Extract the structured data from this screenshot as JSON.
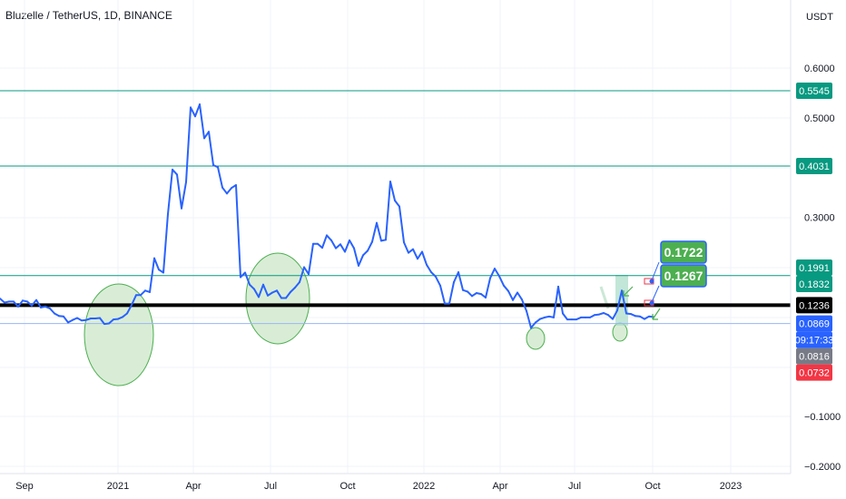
{
  "header": {
    "title": "Bluzelle / TetherUS, 1D, BINANCE"
  },
  "chart_data": {
    "type": "line",
    "title": "Bluzelle / TetherUS, 1D, BINANCE",
    "ylabel": "USDT",
    "ylim": [
      -0.2,
      0.63
    ],
    "y_ticks": [
      "0.6000",
      "0.5000",
      "0.3000",
      "−0.1000",
      "−0.2000"
    ],
    "x_ticks": [
      "Sep",
      "2021",
      "Apr",
      "Jul",
      "Oct",
      "2022",
      "Apr",
      "Jul",
      "Oct",
      "2023"
    ],
    "grid": true,
    "series": [
      {
        "color": "#2962ff",
        "x": [
          0,
          5,
          10,
          15,
          20,
          25,
          30,
          35,
          40,
          45,
          50,
          55,
          60,
          65,
          70,
          75,
          80,
          85,
          90,
          95,
          100,
          105,
          110,
          115,
          120,
          125,
          130,
          135,
          140,
          145,
          150,
          155,
          160,
          165,
          170,
          175,
          180,
          185,
          190,
          195,
          200,
          205,
          210,
          215,
          220,
          225,
          230,
          235,
          240,
          245,
          250,
          255,
          260,
          265,
          270,
          275,
          280,
          285,
          290,
          295,
          300,
          305,
          310,
          315,
          320,
          325,
          330,
          335,
          340,
          345,
          350,
          355,
          360,
          365,
          370,
          375,
          380,
          385,
          390,
          395,
          400,
          405,
          410,
          415,
          420,
          425,
          430,
          435,
          440,
          445,
          450,
          455,
          460,
          465,
          470,
          475,
          480,
          485,
          490,
          495,
          500,
          505,
          510,
          515,
          520,
          525,
          530,
          535,
          540,
          545,
          550,
          555,
          560,
          565,
          570,
          575,
          580,
          585,
          590,
          595,
          600,
          605,
          610,
          615,
          620,
          625,
          630,
          635,
          640,
          645,
          650,
          655,
          660,
          665,
          670,
          675,
          680,
          685,
          690,
          695,
          700,
          705,
          710,
          715,
          720
        ],
        "values": [
          0.137,
          0.129,
          0.131,
          0.131,
          0.121,
          0.133,
          0.131,
          0.123,
          0.134,
          0.119,
          0.121,
          0.117,
          0.107,
          0.102,
          0.101,
          0.089,
          0.094,
          0.098,
          0.093,
          0.094,
          0.097,
          0.097,
          0.098,
          0.086,
          0.087,
          0.095,
          0.096,
          0.1,
          0.107,
          0.124,
          0.144,
          0.144,
          0.153,
          0.15,
          0.218,
          0.195,
          0.189,
          0.307,
          0.396,
          0.386,
          0.318,
          0.371,
          0.521,
          0.503,
          0.527,
          0.459,
          0.472,
          0.405,
          0.401,
          0.36,
          0.348,
          0.359,
          0.365,
          0.18,
          0.189,
          0.165,
          0.156,
          0.14,
          0.165,
          0.143,
          0.149,
          0.153,
          0.138,
          0.138,
          0.15,
          0.159,
          0.17,
          0.2,
          0.186,
          0.247,
          0.247,
          0.239,
          0.264,
          0.254,
          0.238,
          0.246,
          0.231,
          0.254,
          0.238,
          0.203,
          0.224,
          0.233,
          0.251,
          0.289,
          0.253,
          0.255,
          0.372,
          0.334,
          0.322,
          0.25,
          0.229,
          0.236,
          0.217,
          0.231,
          0.205,
          0.19,
          0.181,
          0.163,
          0.127,
          0.127,
          0.17,
          0.19,
          0.154,
          0.151,
          0.142,
          0.148,
          0.146,
          0.139,
          0.178,
          0.197,
          0.182,
          0.163,
          0.152,
          0.134,
          0.149,
          0.135,
          0.112,
          0.078,
          0.089,
          0.096,
          0.099,
          0.101,
          0.099,
          0.161,
          0.107,
          0.095,
          0.095,
          0.095,
          0.099,
          0.099,
          0.099,
          0.104,
          0.105,
          0.108,
          0.104,
          0.096,
          0.113,
          0.153,
          0.107,
          0.106,
          0.102,
          0.101,
          0.096,
          0.101,
          0.1
        ]
      }
    ],
    "horizontal_levels": [
      {
        "value": "0.5545",
        "color": "#089981"
      },
      {
        "value": "0.4031",
        "color": "#089981"
      },
      {
        "value": "0.1832",
        "color": "#089981"
      },
      {
        "value": "0.1236",
        "color": "#000000"
      },
      {
        "value": "0.0869",
        "color": "#9ab5f5"
      }
    ],
    "price_badges": [
      {
        "text": "0.5545",
        "color": "#089981"
      },
      {
        "text": "0.4031",
        "color": "#089981"
      },
      {
        "text": "0.1991",
        "color": "#089981"
      },
      {
        "text": "0.1832",
        "color": "#089981"
      },
      {
        "text": "0.1236",
        "color": "#000000"
      },
      {
        "text": "0.0869",
        "color": "#2962ff"
      },
      {
        "text": "09:17:33",
        "color": "#2962ff"
      },
      {
        "text": "0.0816",
        "color": "#787b86"
      },
      {
        "text": "0.0732",
        "color": "#f23645"
      }
    ],
    "annotations": [
      "0.1722",
      "0.1267"
    ]
  }
}
